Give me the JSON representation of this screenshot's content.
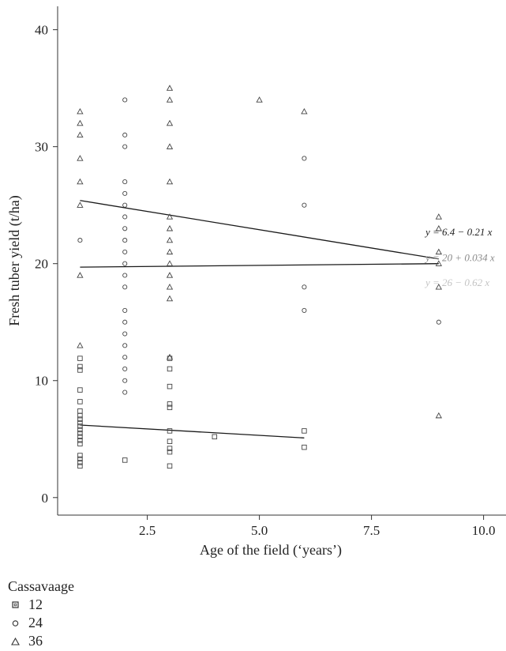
{
  "chart_data": {
    "type": "scatter",
    "xlabel": "Age of the field (‘years’)",
    "ylabel": "Fresh tuber yield (t/ha)",
    "xlim": [
      0.5,
      10.5
    ],
    "ylim": [
      -1.5,
      42
    ],
    "xticks": [
      2.5,
      5.0,
      7.5,
      10.0
    ],
    "xtick_labels": [
      "2.5",
      "5.0",
      "7.5",
      "10.0"
    ],
    "yticks": [
      0,
      10,
      20,
      30,
      40
    ],
    "ytick_labels": [
      "0",
      "10",
      "20",
      "30",
      "40"
    ],
    "grid": false,
    "legend": {
      "title": "Cassavaage",
      "placement": "bottom-left",
      "entries": [
        {
          "label": "12",
          "marker": "square"
        },
        {
          "label": "24",
          "marker": "circle"
        },
        {
          "label": "36",
          "marker": "triangle"
        }
      ]
    },
    "series": [
      {
        "name": "12",
        "marker": "square",
        "points": [
          [
            1,
            2.7
          ],
          [
            1,
            3.0
          ],
          [
            1,
            3.3
          ],
          [
            1,
            3.6
          ],
          [
            1,
            4.6
          ],
          [
            1,
            4.9
          ],
          [
            1,
            5.2
          ],
          [
            1,
            5.5
          ],
          [
            1,
            5.8
          ],
          [
            1,
            6.1
          ],
          [
            1,
            6.4
          ],
          [
            1,
            6.7
          ],
          [
            1,
            7.0
          ],
          [
            1,
            7.4
          ],
          [
            1,
            8.2
          ],
          [
            1,
            9.2
          ],
          [
            1,
            10.9
          ],
          [
            1,
            11.2
          ],
          [
            1,
            11.9
          ],
          [
            2,
            3.2
          ],
          [
            3,
            2.7
          ],
          [
            3,
            3.9
          ],
          [
            3,
            4.2
          ],
          [
            3,
            4.8
          ],
          [
            3,
            5.7
          ],
          [
            3,
            7.7
          ],
          [
            3,
            8.0
          ],
          [
            3,
            9.5
          ],
          [
            3,
            11.0
          ],
          [
            3,
            11.9
          ],
          [
            4,
            5.2
          ],
          [
            6,
            4.3
          ],
          [
            6,
            5.7
          ]
        ],
        "trend": {
          "x": [
            1,
            6
          ],
          "y": [
            6.2,
            5.1
          ]
        }
      },
      {
        "name": "24",
        "marker": "circle",
        "points": [
          [
            1,
            22
          ],
          [
            2,
            9
          ],
          [
            2,
            10
          ],
          [
            2,
            11
          ],
          [
            2,
            12
          ],
          [
            2,
            13
          ],
          [
            2,
            14
          ],
          [
            2,
            15
          ],
          [
            2,
            16
          ],
          [
            2,
            18
          ],
          [
            2,
            19
          ],
          [
            2,
            20
          ],
          [
            2,
            21
          ],
          [
            2,
            22
          ],
          [
            2,
            23
          ],
          [
            2,
            24
          ],
          [
            2,
            25
          ],
          [
            2,
            26
          ],
          [
            2,
            27
          ],
          [
            2,
            30
          ],
          [
            2,
            31
          ],
          [
            2,
            34
          ],
          [
            6,
            16
          ],
          [
            6,
            18
          ],
          [
            6,
            25
          ],
          [
            6,
            29
          ],
          [
            9,
            15
          ]
        ],
        "trend": {
          "x": [
            1,
            9
          ],
          "y": [
            19.7,
            20.0
          ]
        }
      },
      {
        "name": "36",
        "marker": "triangle",
        "points": [
          [
            1,
            13
          ],
          [
            1,
            19
          ],
          [
            1,
            25
          ],
          [
            1,
            27
          ],
          [
            1,
            29
          ],
          [
            1,
            31
          ],
          [
            1,
            32
          ],
          [
            1,
            33
          ],
          [
            3,
            12
          ],
          [
            3,
            17
          ],
          [
            3,
            18
          ],
          [
            3,
            19
          ],
          [
            3,
            20
          ],
          [
            3,
            21
          ],
          [
            3,
            22
          ],
          [
            3,
            23
          ],
          [
            3,
            24
          ],
          [
            3,
            27
          ],
          [
            3,
            30
          ],
          [
            3,
            32
          ],
          [
            3,
            34
          ],
          [
            3,
            35
          ],
          [
            5,
            34
          ],
          [
            6,
            33
          ],
          [
            9,
            7
          ],
          [
            9,
            18
          ],
          [
            9,
            20
          ],
          [
            9,
            21
          ],
          [
            9,
            23
          ],
          [
            9,
            24
          ]
        ],
        "trend": {
          "x": [
            1,
            9
          ],
          "y": [
            25.4,
            20.4
          ]
        }
      }
    ],
    "annotations": [
      {
        "text": "y = 6.4 − 0.21 x",
        "color": "#222222"
      },
      {
        "text": "y = 20 + 0.034 x",
        "color": "#8a8a8a"
      },
      {
        "text": "y = 26 − 0.62 x",
        "color": "#c4c4c4"
      }
    ]
  }
}
